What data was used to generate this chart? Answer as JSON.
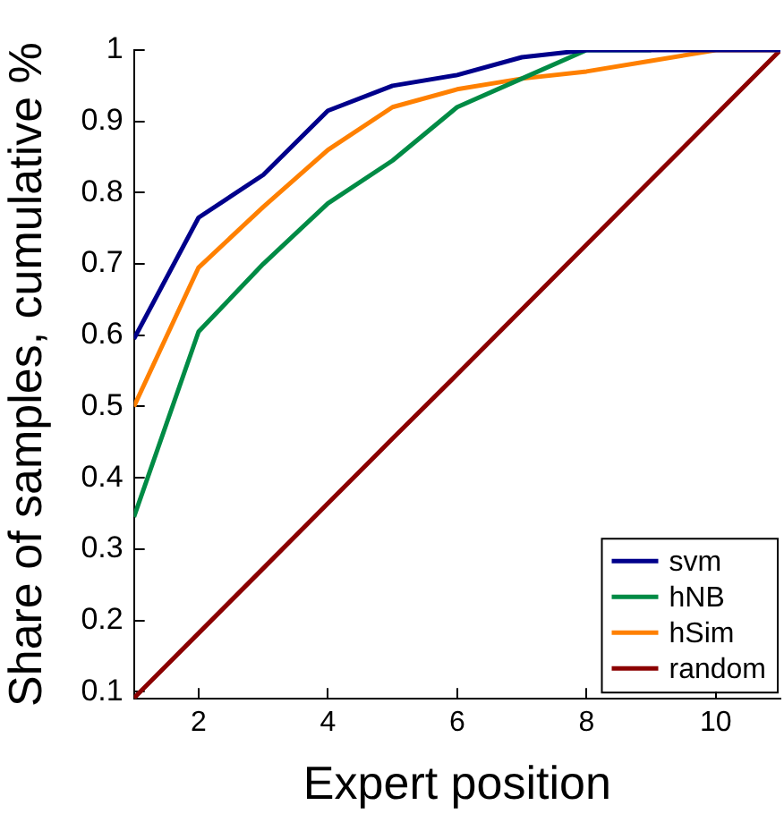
{
  "chart_data": {
    "type": "line",
    "xlabel": "Expert position",
    "ylabel": "Share of samples, cumulative %",
    "x": [
      1,
      2,
      3,
      4,
      5,
      6,
      7,
      8,
      9,
      10,
      11
    ],
    "series": [
      {
        "name": "svm",
        "color": "#00008b",
        "values": [
          0.595,
          0.765,
          0.825,
          0.915,
          0.95,
          0.965,
          0.99,
          1,
          1,
          1,
          1
        ]
      },
      {
        "name": "hNB",
        "color": "#008b45",
        "values": [
          0.345,
          0.605,
          0.7,
          0.785,
          0.845,
          0.92,
          0.96,
          1,
          1,
          null,
          null
        ]
      },
      {
        "name": "hSim",
        "color": "#ff8000",
        "values": [
          0.5,
          0.695,
          0.78,
          0.86,
          0.92,
          0.945,
          0.96,
          0.97,
          0.985,
          1,
          1
        ]
      },
      {
        "name": "random",
        "color": "#8b0000",
        "values": [
          0.091,
          0.182,
          0.273,
          0.364,
          0.455,
          0.545,
          0.636,
          0.727,
          0.818,
          0.909,
          1
        ]
      }
    ],
    "xlim": [
      1,
      11
    ],
    "xticks": [
      2,
      4,
      6,
      8,
      10
    ],
    "ylim": [
      0.09,
      1
    ],
    "yticks": [
      0.1,
      0.2,
      0.3,
      0.4,
      0.5,
      0.6,
      0.7,
      0.8,
      0.9,
      1
    ],
    "grid": false,
    "legend": "bottom right",
    "marker": "none",
    "line_style": "solid"
  }
}
